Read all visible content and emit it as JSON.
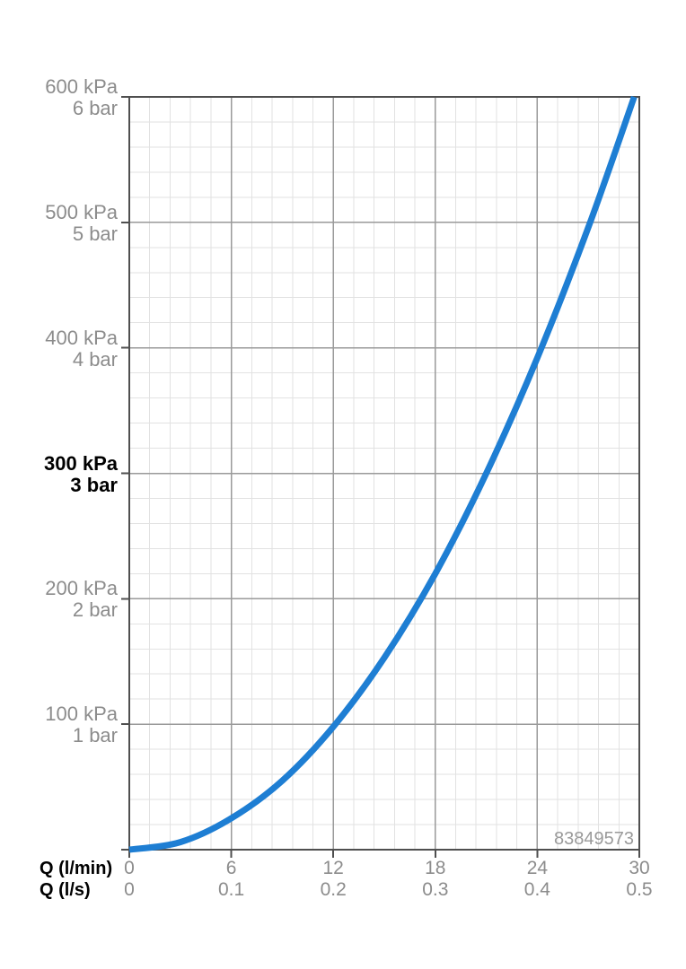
{
  "chart_data": {
    "type": "line",
    "title": "",
    "x_axis": {
      "rows": [
        {
          "label": "Q (l/min)",
          "ticks": [
            "0",
            "6",
            "12",
            "18",
            "24",
            "30"
          ],
          "values": [
            0,
            6,
            12,
            18,
            24,
            30
          ]
        },
        {
          "label": "Q (l/s)",
          "ticks": [
            "0",
            "0.1",
            "0.2",
            "0.3",
            "0.4",
            "0.5"
          ],
          "values": [
            0,
            0.1,
            0.2,
            0.3,
            0.4,
            0.5
          ]
        }
      ],
      "xlim": [
        0,
        30
      ],
      "major_step": 6,
      "minor_per_major": 5
    },
    "y_axis": {
      "unit_primary": "kPa",
      "unit_secondary": "bar",
      "ticks": [
        {
          "kpa": "600 kPa",
          "bar": "6 bar",
          "value": 600,
          "bold": false
        },
        {
          "kpa": "500 kPa",
          "bar": "5 bar",
          "value": 500,
          "bold": false
        },
        {
          "kpa": "400 kPa",
          "bar": "4 bar",
          "value": 400,
          "bold": false
        },
        {
          "kpa": "300 kPa",
          "bar": "3 bar",
          "value": 300,
          "bold": true
        },
        {
          "kpa": "200 kPa",
          "bar": "2 bar",
          "value": 200,
          "bold": false
        },
        {
          "kpa": "100 kPa",
          "bar": "1 bar",
          "value": 100,
          "bold": false
        }
      ],
      "ylim": [
        0,
        600
      ],
      "major_step": 100,
      "minor_per_major": 5
    },
    "series": [
      {
        "name": "pressure-flow-curve",
        "color": "#1e7ed3",
        "points": [
          [
            0,
            0
          ],
          [
            3,
            6
          ],
          [
            6,
            25
          ],
          [
            9,
            55
          ],
          [
            12,
            98
          ],
          [
            15,
            153
          ],
          [
            18,
            220
          ],
          [
            21,
            300
          ],
          [
            24,
            392
          ],
          [
            27,
            496
          ],
          [
            29.7,
            600
          ]
        ]
      }
    ],
    "grid": true,
    "legend": false,
    "watermark": "83849573",
    "colors": {
      "curve": "#1e7ed3",
      "border": "#4f4f4f",
      "grid_major": "#9a9a9a",
      "grid_minor": "#e2e2e2",
      "label_gray": "#8c8c8c",
      "label_black": "#000000",
      "watermark": "#9a9a9a"
    }
  }
}
